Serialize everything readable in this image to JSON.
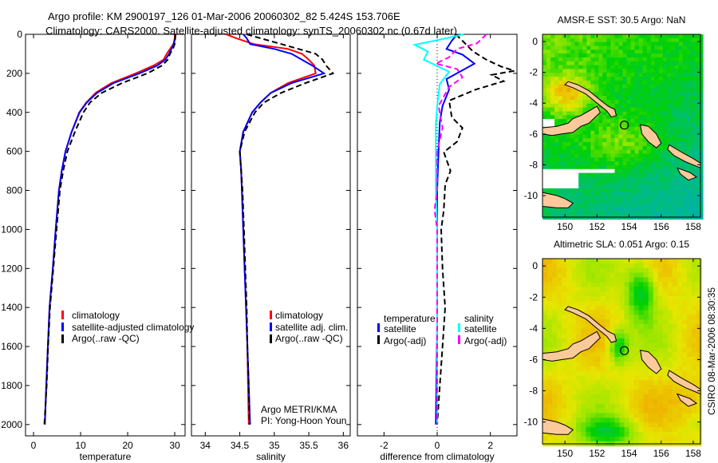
{
  "title": {
    "line1": "Argo profile: KM 2900197_126 01-Mar-2006 20060302_82 5.424S 153.706E",
    "line2": "Climatology: CARS2000. Satellite-adjusted climatology: synTS_20060302.nc (0.67d later)"
  },
  "credit": {
    "line1": "Argo METRI/KMA",
    "line2": "PI: Yong-Hoon Youn"
  },
  "timestamp": "CSIRO 08-Mar-2006 08:30:35",
  "colors": {
    "climatology": "#ff0000",
    "satellite": "#0000ff",
    "argo": "#000000",
    "sal_satellite": "#00ffff",
    "sal_argo": "#ff00ff"
  },
  "chart_data": [
    {
      "type": "line",
      "xlabel": "temperature",
      "ylabel": "",
      "xlim": [
        -1.7,
        32.2
      ],
      "ylim": [
        2058,
        0
      ],
      "xticks": [
        "0",
        "10",
        "20",
        "30"
      ],
      "yticks": [
        "0",
        "200",
        "400",
        "600",
        "800",
        "1000",
        "1200",
        "1400",
        "1600",
        "1800",
        "2000"
      ],
      "depth": [
        0,
        20,
        50,
        75,
        100,
        130,
        160,
        200,
        250,
        300,
        350,
        400,
        500,
        600,
        700,
        800,
        1000,
        1200,
        1400,
        1600,
        1800,
        2000
      ],
      "series": [
        {
          "name": "climatology",
          "values": [
            30,
            30,
            29.7,
            29,
            28.3,
            27.6,
            25.5,
            21.7,
            16.5,
            13.2,
            11.2,
            9.7,
            8.1,
            6.8,
            6,
            5.4,
            4.7,
            4.1,
            3.4,
            3.05,
            2.7,
            2.4
          ]
        },
        {
          "name": "satellite-adjusted climatology",
          "values": [
            30.2,
            30.1,
            29.8,
            29.3,
            28.8,
            28,
            26.3,
            22.5,
            17,
            13.5,
            11.3,
            9.8,
            8.1,
            6.8,
            6,
            5.4,
            4.7,
            4.1,
            3.4,
            3.05,
            2.7,
            2.4
          ]
        },
        {
          "name": "Argo(..raw -QC)",
          "values": [
            30.1,
            30.1,
            30,
            29.6,
            29,
            28.5,
            27.3,
            24.2,
            18.8,
            14.5,
            12,
            10.6,
            8.8,
            7.2,
            6.3,
            5.6,
            4.9,
            4.2,
            3.5,
            3.1,
            2.8,
            2.3
          ]
        }
      ],
      "legend": [
        "climatology",
        "satellite-adjusted climatology",
        "Argo(..raw -QC)"
      ]
    },
    {
      "type": "line",
      "xlabel": "salinity",
      "xlim": [
        33.8,
        36.1
      ],
      "ylim": [
        2058,
        0
      ],
      "xticks": [
        "34",
        "34.5",
        "35",
        "35.5",
        "36"
      ],
      "depth": [
        0,
        20,
        50,
        75,
        100,
        130,
        160,
        200,
        250,
        300,
        350,
        400,
        500,
        600,
        700,
        800,
        1000,
        1200,
        1400,
        1600,
        1800,
        2000
      ],
      "series": [
        {
          "name": "climatology",
          "values": [
            34.3,
            34.45,
            34.7,
            35.2,
            35.4,
            35.5,
            35.58,
            35.6,
            35.2,
            34.95,
            34.8,
            34.68,
            34.55,
            34.5,
            34.52,
            34.53,
            34.55,
            34.57,
            34.59,
            34.61,
            34.62,
            34.63
          ]
        },
        {
          "name": "satellite adj. clim.",
          "values": [
            34.55,
            34.6,
            34.65,
            35.0,
            35.25,
            35.4,
            35.55,
            35.72,
            35.25,
            34.95,
            34.8,
            34.68,
            34.55,
            34.5,
            34.52,
            34.53,
            34.55,
            34.57,
            34.59,
            34.61,
            34.63,
            34.65
          ]
        },
        {
          "name": "Argo(..raw -QC)",
          "values": [
            34.6,
            34.8,
            35.1,
            35.35,
            35.6,
            35.7,
            35.75,
            35.85,
            35.45,
            35.1,
            34.85,
            34.72,
            34.57,
            34.5,
            34.52,
            34.54,
            34.56,
            34.58,
            34.6,
            34.61,
            34.63,
            34.64
          ]
        }
      ],
      "legend": [
        "climatology",
        "satellite adj. clim.",
        "Argo(..raw -QC)"
      ]
    },
    {
      "type": "line",
      "xlabel": "difference from climatology",
      "xlim": [
        -3,
        3
      ],
      "ylim": [
        2058,
        0
      ],
      "xticks": [
        "-2",
        "0",
        "2"
      ],
      "series": [
        {
          "name": "temperature satellite",
          "depth": [
            0,
            33,
            75,
            104,
            150,
            229,
            283,
            367,
            450,
            600,
            800,
            1000,
            1500,
            2000
          ],
          "values": [
            0.75,
            0.55,
            0.35,
            0.95,
            1.4,
            0.35,
            0.45,
            0.2,
            0.1,
            0.05,
            0,
            0,
            0,
            -0.05
          ]
        },
        {
          "name": "temperature Argo(-adj)",
          "depth": [
            0,
            33,
            88,
            130,
            165,
            187,
            208,
            240,
            283,
            340,
            425,
            480,
            550,
            604,
            700,
            770,
            900,
            1000,
            1200,
            1400,
            1600,
            1800,
            2000
          ],
          "values": [
            0.7,
            0.95,
            1.35,
            1.85,
            2.4,
            2.9,
            2.05,
            2.5,
            1.45,
            0.45,
            0.55,
            0.95,
            0.75,
            0.25,
            0.5,
            0.3,
            0.25,
            0.15,
            0.2,
            0.3,
            0.2,
            0.1,
            0
          ]
        },
        {
          "name": "salinity satellite",
          "depth": [
            0,
            30,
            54,
            88,
            130,
            192,
            254,
            367,
            462,
            600,
            800,
            1000,
            1500,
            2000
          ],
          "values": [
            1.0,
            0.0,
            -0.85,
            -0.35,
            -0.5,
            0.45,
            0.1,
            0,
            -0.05,
            -0.05,
            -0.05,
            0,
            0,
            0
          ]
        },
        {
          "name": "salinity Argo(-adj)",
          "depth": [
            0,
            46,
            75,
            117,
            150,
            178,
            220,
            270,
            367,
            480,
            600,
            800,
            900,
            1000,
            1400,
            2000
          ],
          "values": [
            1.85,
            1.5,
            0.75,
            0.45,
            -0.05,
            0.75,
            0.95,
            0.45,
            0.05,
            0.2,
            0,
            0,
            -0.1,
            0,
            0,
            0
          ]
        }
      ],
      "legend": {
        "temp_header": "temperature",
        "temp_sat": "satellite",
        "temp_argo": "Argo(-adj)",
        "sal_header": "salinity",
        "sal_sat": "satellite",
        "sal_argo": "Argo(-adj)"
      }
    },
    {
      "type": "heatmap",
      "title": "AMSR-E SST: 30.5 Argo: NaN",
      "xlim": [
        148.6,
        158.45
      ],
      "ylim": [
        -11.4,
        0.47
      ],
      "xticks": [
        "150",
        "152",
        "154",
        "156",
        "158"
      ],
      "yticks": [
        "0",
        "-2",
        "-4",
        "-6",
        "-8",
        "-10"
      ],
      "argo_position": {
        "lon": 153.706,
        "lat": -5.424
      }
    },
    {
      "type": "heatmap",
      "title": "Altimetric SLA: 0.051 Argo: 0.15",
      "xlim": [
        148.6,
        158.45
      ],
      "ylim": [
        -11.4,
        0.47
      ],
      "xticks": [
        "150",
        "152",
        "154",
        "156",
        "158"
      ],
      "yticks": [
        "0",
        "-2",
        "-4",
        "-6",
        "-8",
        "-10"
      ],
      "argo_position": {
        "lon": 153.706,
        "lat": -5.424
      }
    }
  ]
}
